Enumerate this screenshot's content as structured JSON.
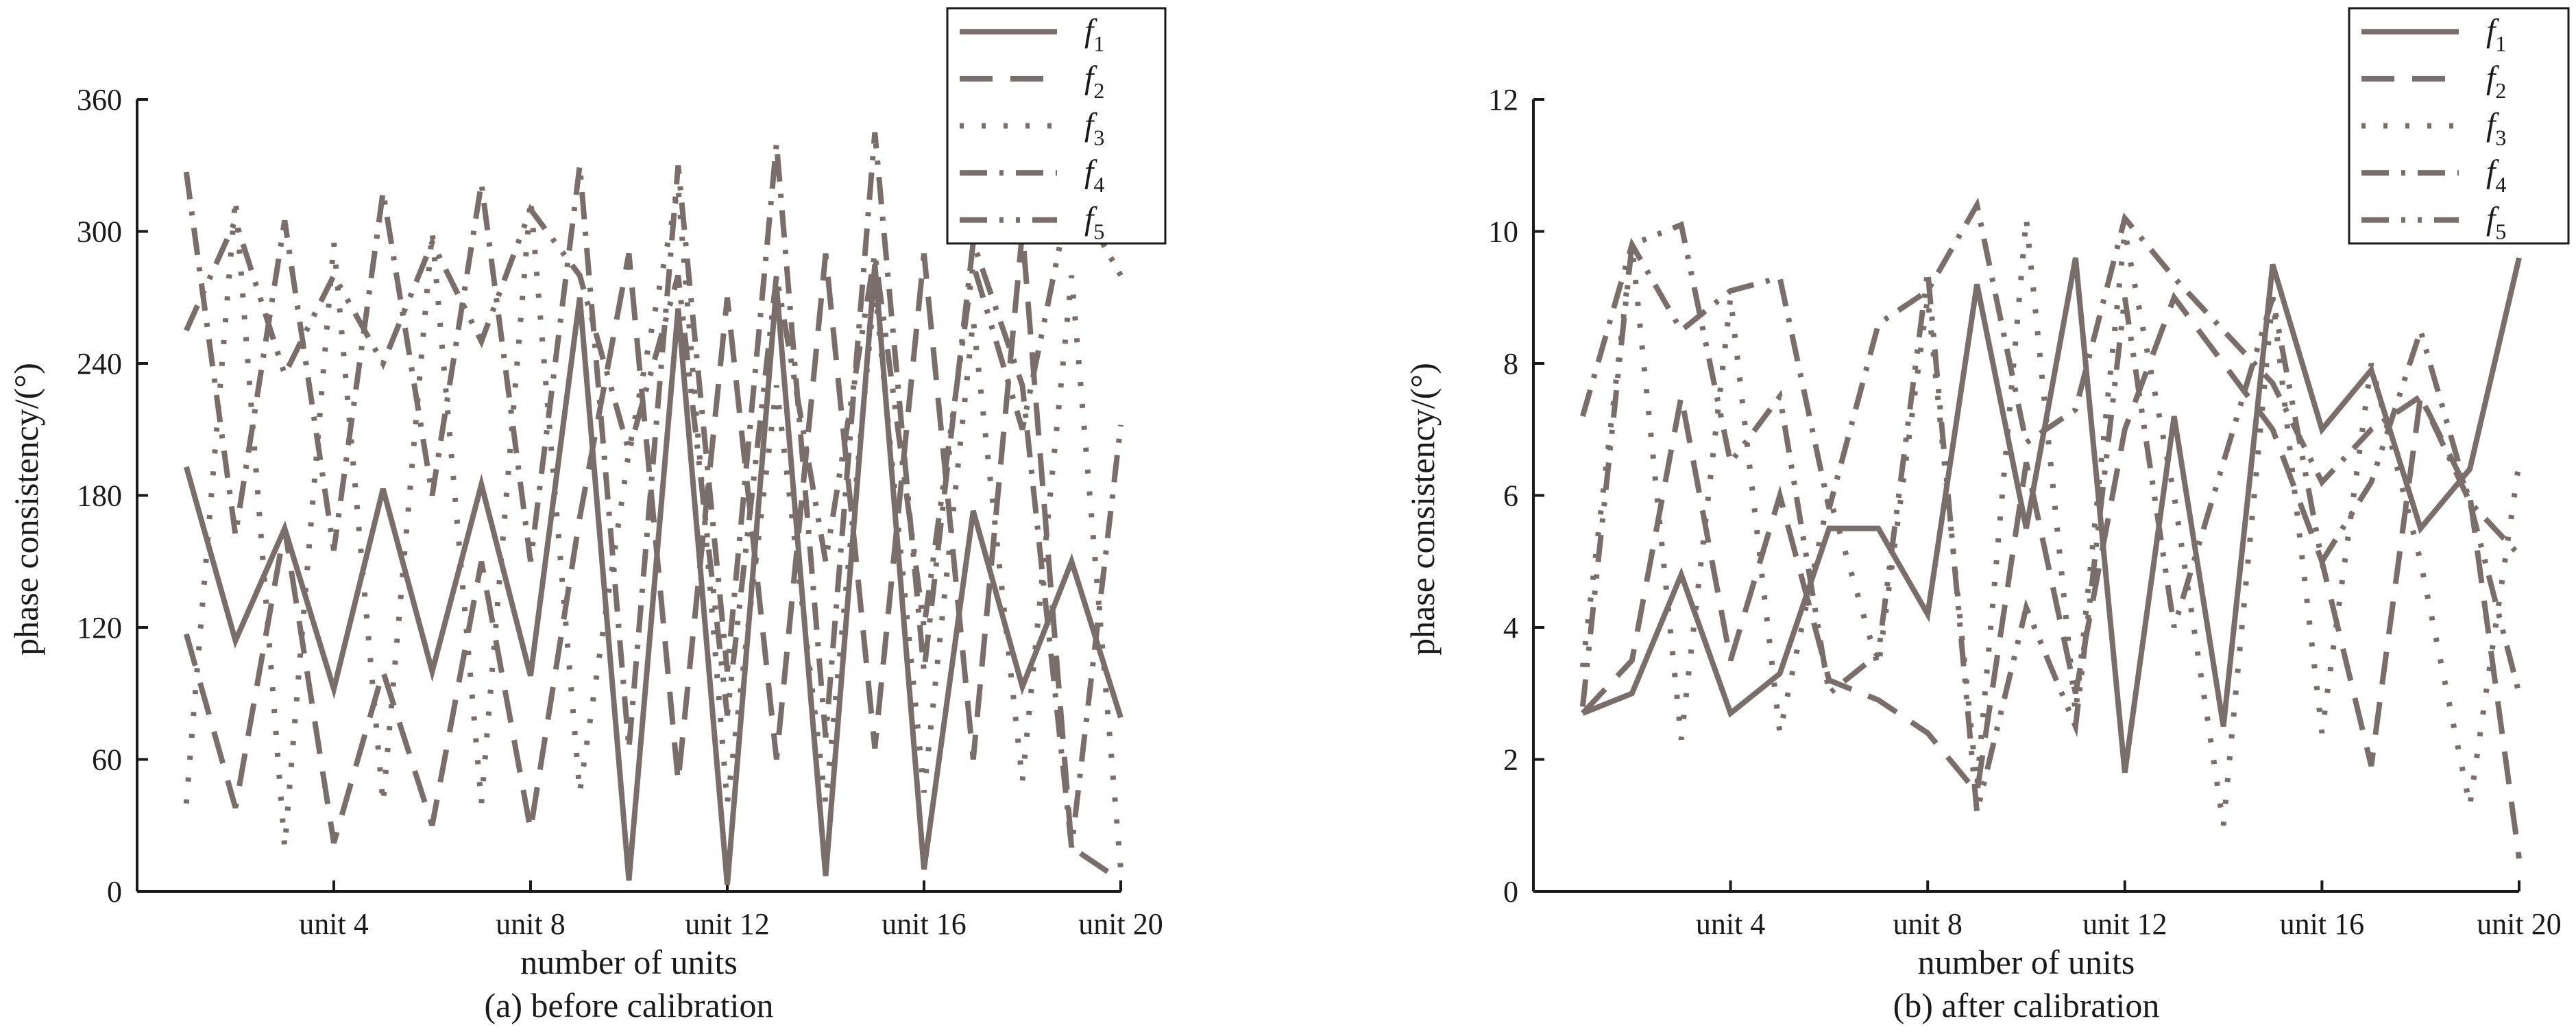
{
  "chart_data": [
    {
      "type": "line",
      "caption": "(a) before calibration",
      "xlabel": "number of units",
      "ylabel": "phase consistency/(°)",
      "x": [
        1,
        2,
        3,
        4,
        5,
        6,
        7,
        8,
        9,
        10,
        11,
        12,
        13,
        14,
        15,
        16,
        17,
        18,
        19,
        20
      ],
      "xlim": [
        0,
        20
      ],
      "xticks": [
        4,
        8,
        12,
        16,
        20
      ],
      "xticklabels": [
        "unit 4",
        "unit 8",
        "unit 12",
        "unit 16",
        "unit 20"
      ],
      "ylim": [
        0,
        360
      ],
      "yticks": [
        0,
        60,
        120,
        180,
        240,
        300,
        360
      ],
      "legend_position": "top-right",
      "series": [
        {
          "name": "f1",
          "values": [
            193,
            114,
            165,
            92,
            183,
            100,
            185,
            98,
            270,
            5,
            265,
            3,
            275,
            7,
            285,
            10,
            173,
            93,
            150,
            79
          ]
        },
        {
          "name": "f2",
          "values": [
            117,
            38,
            165,
            22,
            100,
            30,
            150,
            28,
            170,
            290,
            50,
            270,
            60,
            290,
            65,
            290,
            60,
            300,
            20,
            5
          ]
        },
        {
          "name": "f3",
          "values": [
            40,
            315,
            20,
            295,
            40,
            300,
            40,
            315,
            45,
            200,
            320,
            40,
            230,
            40,
            275,
            45,
            260,
            50,
            280,
            10
          ]
        },
        {
          "name": "f4",
          "values": [
            327,
            162,
            305,
            155,
            318,
            180,
            322,
            150,
            330,
            65,
            330,
            100,
            340,
            70,
            345,
            100,
            295,
            230,
            20,
            212
          ]
        },
        {
          "name": "f5",
          "values": [
            255,
            305,
            235,
            280,
            240,
            295,
            250,
            310,
            280,
            200,
            280,
            80,
            280,
            150,
            290,
            120,
            285,
            210,
            320,
            280
          ]
        }
      ]
    },
    {
      "type": "line",
      "caption": "(b) after calibration",
      "xlabel": "number of units",
      "ylabel": "phase consistency/(°)",
      "x": [
        1,
        2,
        3,
        4,
        5,
        6,
        7,
        8,
        9,
        10,
        11,
        12,
        13,
        14,
        15,
        16,
        17,
        18,
        19,
        20
      ],
      "xlim": [
        0,
        20
      ],
      "xticks": [
        4,
        8,
        12,
        16,
        20
      ],
      "xticklabels": [
        "unit 4",
        "unit 8",
        "unit 12",
        "unit 16",
        "unit 20"
      ],
      "ylim": [
        0,
        12
      ],
      "yticks": [
        0,
        2,
        4,
        6,
        8,
        10,
        12
      ],
      "legend_position": "top-right",
      "series": [
        {
          "name": "f1",
          "values": [
            2.7,
            3.0,
            4.8,
            2.7,
            3.3,
            5.5,
            5.5,
            4.2,
            9.2,
            5.5,
            9.6,
            1.8,
            7.2,
            2.5,
            9.5,
            7.0,
            7.9,
            5.5,
            6.4,
            9.6
          ]
        },
        {
          "name": "f2",
          "values": [
            2.7,
            3.5,
            7.5,
            3.5,
            6.0,
            3.2,
            2.9,
            2.4,
            1.5,
            6.5,
            3.0,
            7.0,
            9.0,
            8.0,
            7.0,
            5.0,
            1.9,
            7.5,
            6.0,
            0.5
          ]
        },
        {
          "name": "f3",
          "values": [
            3.4,
            9.8,
            2.3,
            9.0,
            2.4,
            6.0,
            3.4,
            9.0,
            1.6,
            10.2,
            2.7,
            10.0,
            6.0,
            1.0,
            9.0,
            2.4,
            8.0,
            5.0,
            1.3,
            6.5
          ]
        },
        {
          "name": "f4",
          "values": [
            7.2,
            9.8,
            8.5,
            9.1,
            9.3,
            5.8,
            8.6,
            9.1,
            10.4,
            6.8,
            7.3,
            10.2,
            9.3,
            8.5,
            7.7,
            6.2,
            7.0,
            7.5,
            5.9,
            5.1
          ]
        },
        {
          "name": "f5",
          "values": [
            2.8,
            9.8,
            10.1,
            6.5,
            7.5,
            3.0,
            3.6,
            9.4,
            1.2,
            4.3,
            2.5,
            9.0,
            4.0,
            6.5,
            9.0,
            5.0,
            6.2,
            8.5,
            5.9,
            3.0
          ]
        }
      ]
    }
  ],
  "style": {
    "series_color": "#7a6e6b",
    "axis_color": "#1a1a1a"
  }
}
